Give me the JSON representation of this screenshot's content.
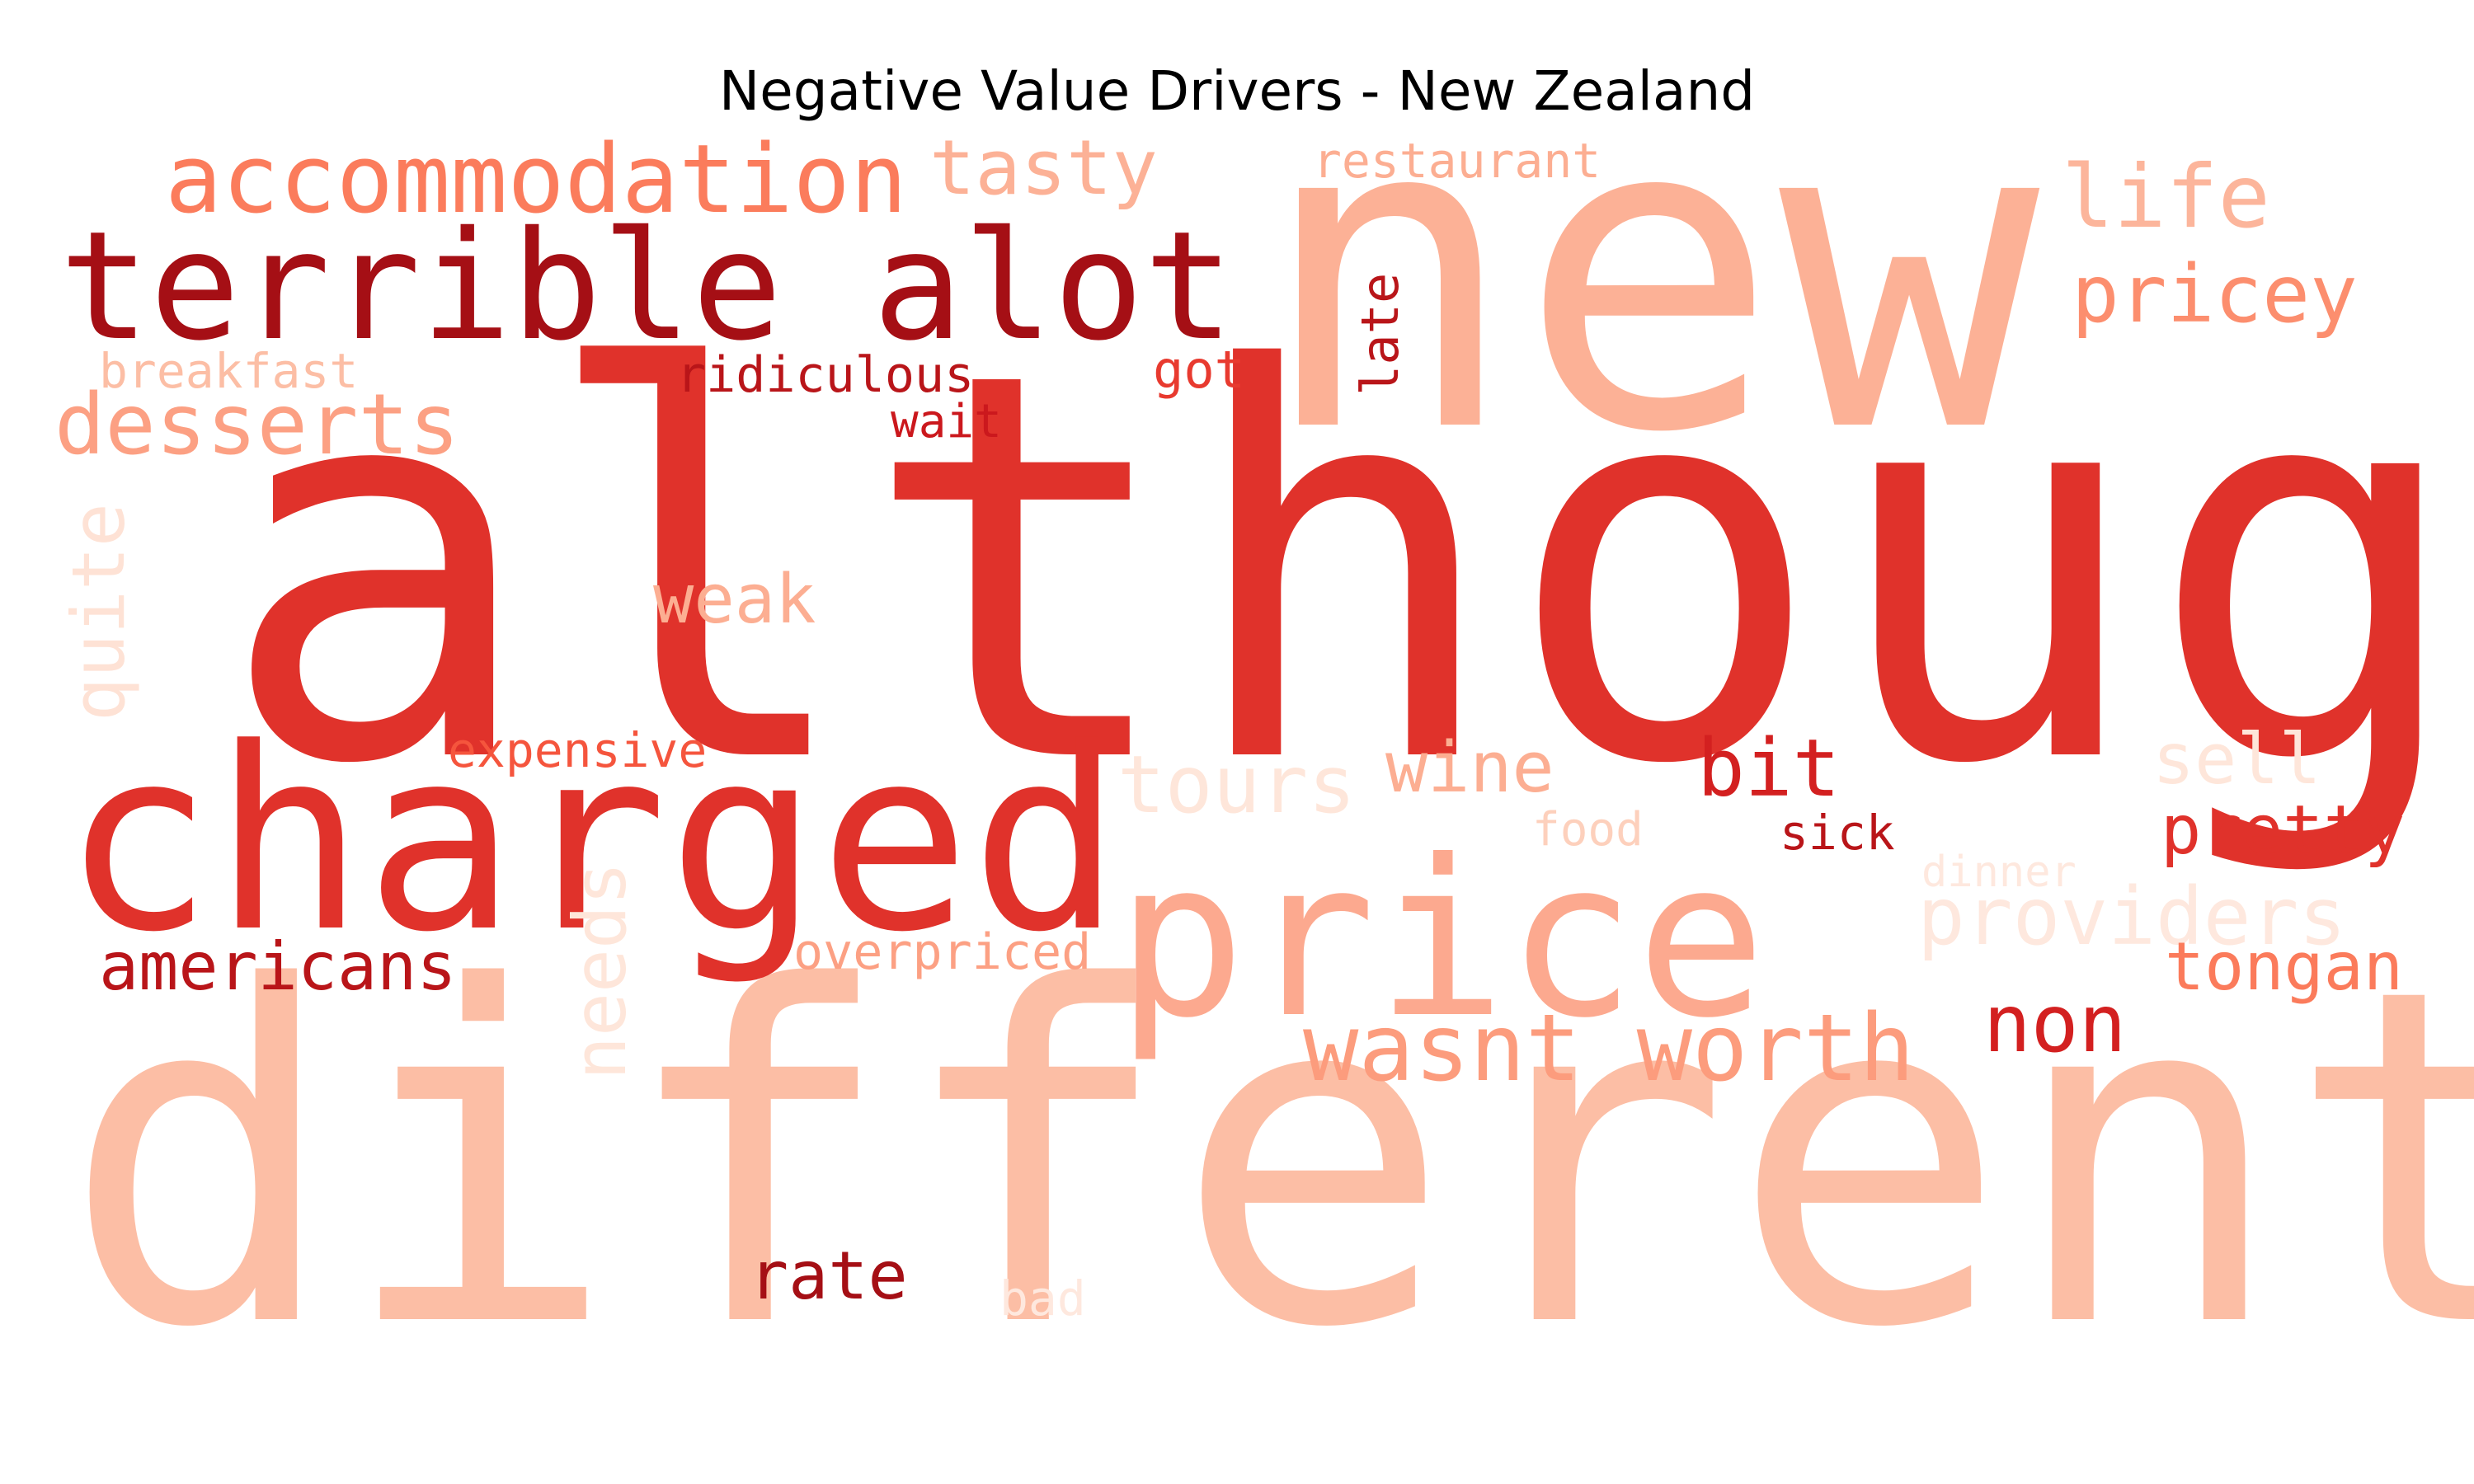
{
  "title": "Negative Value Drivers - New Zealand",
  "colormap": "Reds",
  "words": [
    {
      "text": "although",
      "color": "#e0322b"
    },
    {
      "text": "different",
      "color": "#fcbea5"
    },
    {
      "text": "new",
      "color": "#fcb196"
    },
    {
      "text": "charged",
      "color": "#e0322b"
    },
    {
      "text": "price",
      "color": "#fca98f"
    },
    {
      "text": "terrible alot",
      "color": "#a50f15"
    },
    {
      "text": "accommodation",
      "color": "#fb7c5c"
    },
    {
      "text": "tasty",
      "color": "#fcb196"
    },
    {
      "text": "restaurant",
      "color": "#fcae92"
    },
    {
      "text": "life",
      "color": "#fcb59b"
    },
    {
      "text": "pricey",
      "color": "#fc8e6e"
    },
    {
      "text": "breakfast",
      "color": "#fcbea5"
    },
    {
      "text": "ridiculous",
      "color": "#b91519"
    },
    {
      "text": "got",
      "color": "#e83a2f"
    },
    {
      "text": "late",
      "color": "#b91519"
    },
    {
      "text": "desserts",
      "color": "#fca083"
    },
    {
      "text": "wait",
      "color": "#cb181d"
    },
    {
      "text": "quite",
      "color": "#fee2d5"
    },
    {
      "text": "weak",
      "color": "#fcae92"
    },
    {
      "text": "expensive",
      "color": "#f5553d"
    },
    {
      "text": "tours",
      "color": "#fee6da"
    },
    {
      "text": "wine",
      "color": "#fcae92"
    },
    {
      "text": "bit",
      "color": "#d32020"
    },
    {
      "text": "sell",
      "color": "#fee6da"
    },
    {
      "text": "food",
      "color": "#fdd0bc"
    },
    {
      "text": "sick",
      "color": "#b91519"
    },
    {
      "text": "pretty",
      "color": "#e0322b"
    },
    {
      "text": "needs",
      "color": "#fee6da"
    },
    {
      "text": "dinner",
      "color": "#fee8de"
    },
    {
      "text": "providers",
      "color": "#fee8de"
    },
    {
      "text": "americans",
      "color": "#b91519"
    },
    {
      "text": "overpriced",
      "color": "#fca083"
    },
    {
      "text": "tongan",
      "color": "#fb7b5b"
    },
    {
      "text": "wasnt worth",
      "color": "#fc9c7d"
    },
    {
      "text": "non",
      "color": "#d32020"
    },
    {
      "text": "rate",
      "color": "#a50f15"
    },
    {
      "text": "bad",
      "color": "#fee8de"
    }
  ]
}
